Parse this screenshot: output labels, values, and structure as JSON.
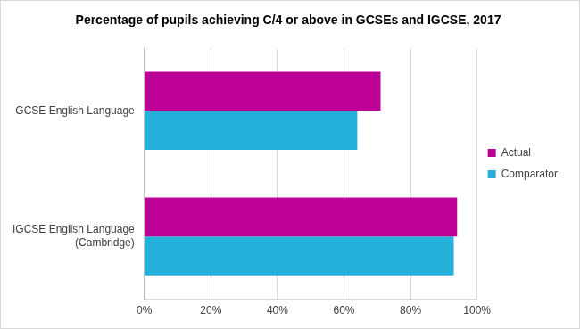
{
  "chart_data": {
    "type": "bar",
    "orientation": "horizontal",
    "title": "Percentage of pupils achieving C/4 or above in GCSEs and IGCSE, 2017",
    "categories": [
      "GCSE English Language",
      "IGCSE English Language (Cambridge)"
    ],
    "series": [
      {
        "name": "Actual",
        "color": "#bd0096",
        "values": [
          71,
          94
        ]
      },
      {
        "name": "Comparator",
        "color": "#24b0d9",
        "values": [
          64,
          93
        ]
      }
    ],
    "xlim": [
      0,
      100
    ],
    "xticks": [
      {
        "value": 0,
        "label": "0%"
      },
      {
        "value": 20,
        "label": "20%"
      },
      {
        "value": 40,
        "label": "40%"
      },
      {
        "value": 60,
        "label": "60%"
      },
      {
        "value": 80,
        "label": "80%"
      },
      {
        "value": 100,
        "label": "100%"
      }
    ],
    "grid": true,
    "legend": "right"
  }
}
